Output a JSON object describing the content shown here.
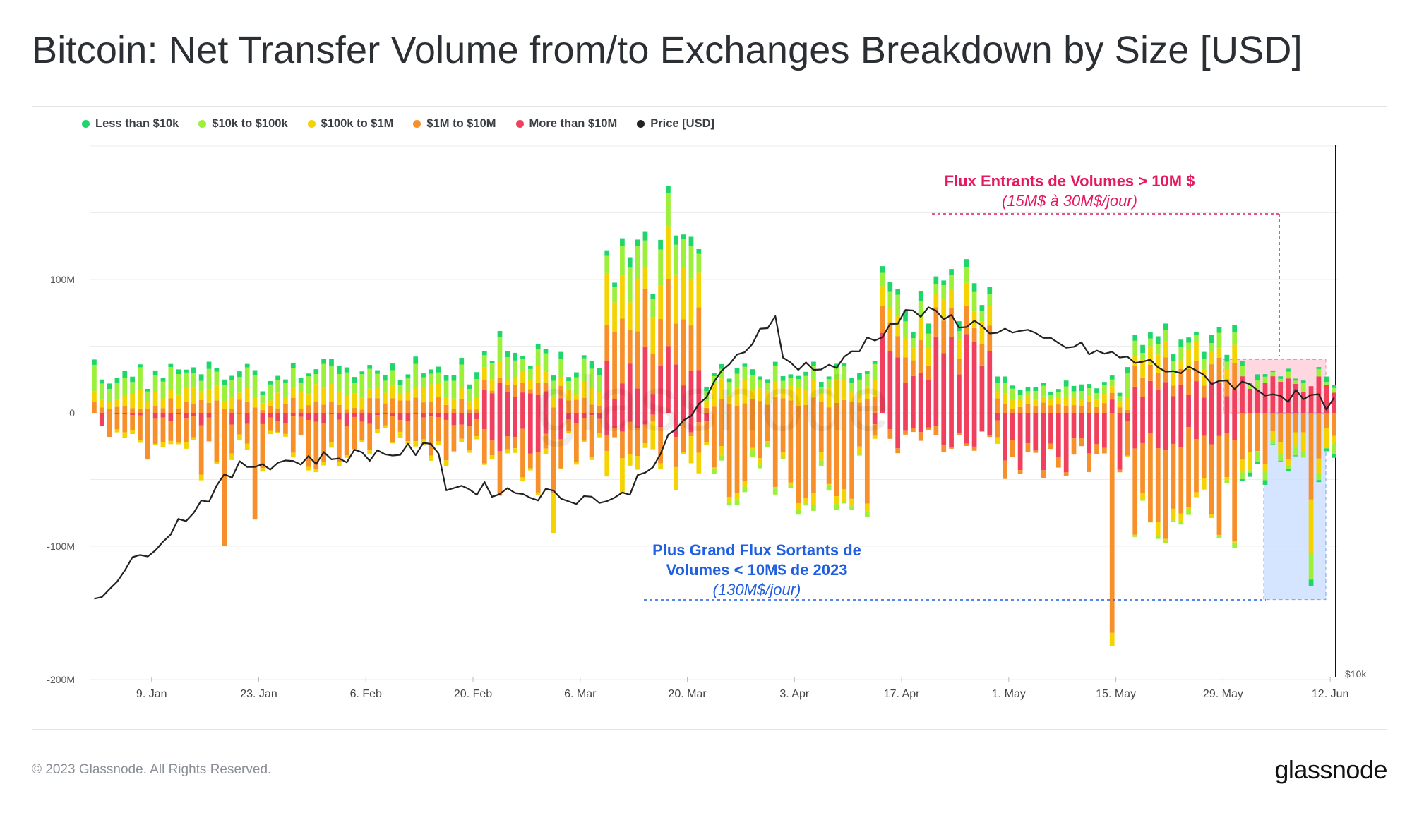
{
  "title": "Bitcoin: Net Transfer Volume from/to Exchanges Breakdown by Size [USD]",
  "footer": {
    "copyright": "© 2023 Glassnode. All Rights Reserved.",
    "brand": "glassnode"
  },
  "watermark": "glassnode",
  "legend": [
    {
      "label": "Less than $10k",
      "color": "#1fd66b"
    },
    {
      "label": "$10k to $100k",
      "color": "#9df03a"
    },
    {
      "label": "$100k to $1M",
      "color": "#f5d300"
    },
    {
      "label": "$1M to $10M",
      "color": "#f7902a"
    },
    {
      "label": "More than $10M",
      "color": "#f0405e"
    },
    {
      "label": "Price [USD]",
      "color": "#222222"
    }
  ],
  "annotations": {
    "inflow_title": "Flux Entrants de Volumes > 10M $",
    "inflow_sub": "(15M$ à 30M$/jour)",
    "outflow_title_1": "Plus Grand Flux Sortants de",
    "outflow_title_2": "Volumes < 10M$ de 2023",
    "outflow_sub": "(130M$/jour)",
    "inflow_color": "#e6185f",
    "outflow_color": "#1f5fe0"
  },
  "chart_data": {
    "type": "bar",
    "stacked": true,
    "y_axis": {
      "labels": [
        "100M",
        "0",
        "-100M",
        "-200M"
      ],
      "ticks": [
        100,
        0,
        -100,
        -200
      ],
      "range": [
        -200,
        200
      ],
      "unit": "M USD"
    },
    "price_axis": {
      "label": "$10k"
    },
    "x_axis": {
      "labels": [
        "9. Jan",
        "23. Jan",
        "6. Feb",
        "20. Feb",
        "6. Mar",
        "20. Mar",
        "3. Apr",
        "17. Apr",
        "1. May",
        "15. May",
        "29. May",
        "12. Jun"
      ],
      "start": "2023-01-01",
      "end": "2023-06-13"
    },
    "series_names": [
      "Less than $10k",
      "$10k to $100k",
      "$100k to $1M",
      "$1M to $10M",
      "More than $10M"
    ],
    "series_colors": [
      "#1fd66b",
      "#9df03a",
      "#f5d300",
      "#f7902a",
      "#f0405e"
    ],
    "days": 163,
    "net_series": [
      {
        "date": "2023-01-01",
        "net": 40,
        "pos_split": [
          4,
          20,
          8,
          8,
          0
        ],
        "neg_split": [
          0,
          0,
          0,
          0,
          0
        ]
      },
      {
        "date": "2023-01-02",
        "net": 25,
        "pos_split": [
          3,
          12,
          6,
          4,
          0
        ],
        "neg_split": [
          0,
          0,
          0,
          0,
          -10
        ]
      },
      {
        "date": "2023-01-03",
        "net": -18,
        "pos_split": [
          4,
          10,
          5,
          3,
          0
        ],
        "neg_split": [
          0,
          0,
          0,
          -18,
          0
        ]
      },
      {
        "date": "2023-01-08",
        "net": -35,
        "pos_split": [
          2,
          8,
          5,
          3,
          0
        ],
        "neg_split": [
          0,
          0,
          0,
          -35,
          0
        ]
      },
      {
        "date": "2023-01-18",
        "net": -100,
        "pos_split": [
          4,
          12,
          6,
          3,
          0
        ],
        "neg_split": [
          0,
          0,
          0,
          -100,
          0
        ]
      },
      {
        "date": "2023-01-22",
        "net": -80,
        "pos_split": [
          4,
          16,
          8,
          4,
          0
        ],
        "neg_split": [
          0,
          0,
          0,
          -80,
          0
        ]
      },
      {
        "date": "2023-03-02",
        "net": -90,
        "pos_split": [
          4,
          12,
          8,
          4,
          0
        ],
        "neg_split": [
          0,
          0,
          -30,
          -60,
          0
        ]
      },
      {
        "date": "2023-03-17",
        "net": 170,
        "pos_split": [
          5,
          25,
          40,
          50,
          50
        ],
        "neg_split": [
          0,
          0,
          0,
          0,
          0
        ]
      },
      {
        "date": "2023-04-14",
        "net": 110,
        "pos_split": [
          5,
          10,
          15,
          20,
          60
        ],
        "neg_split": [
          0,
          0,
          0,
          0,
          0
        ]
      },
      {
        "date": "2023-05-14",
        "net": -175,
        "pos_split": [
          3,
          5,
          5,
          5,
          10
        ],
        "neg_split": [
          0,
          0,
          -10,
          -165,
          0
        ]
      },
      {
        "date": "2023-06-09",
        "net": -130,
        "pos_split": [
          0,
          0,
          0,
          0,
          20
        ],
        "neg_split": [
          -5,
          -20,
          -40,
          -65,
          0
        ]
      }
    ],
    "price": {
      "start": 16.6,
      "peak_apr": 30.4,
      "end_jun": 25.9,
      "unit": "k USD"
    },
    "grid": true
  }
}
